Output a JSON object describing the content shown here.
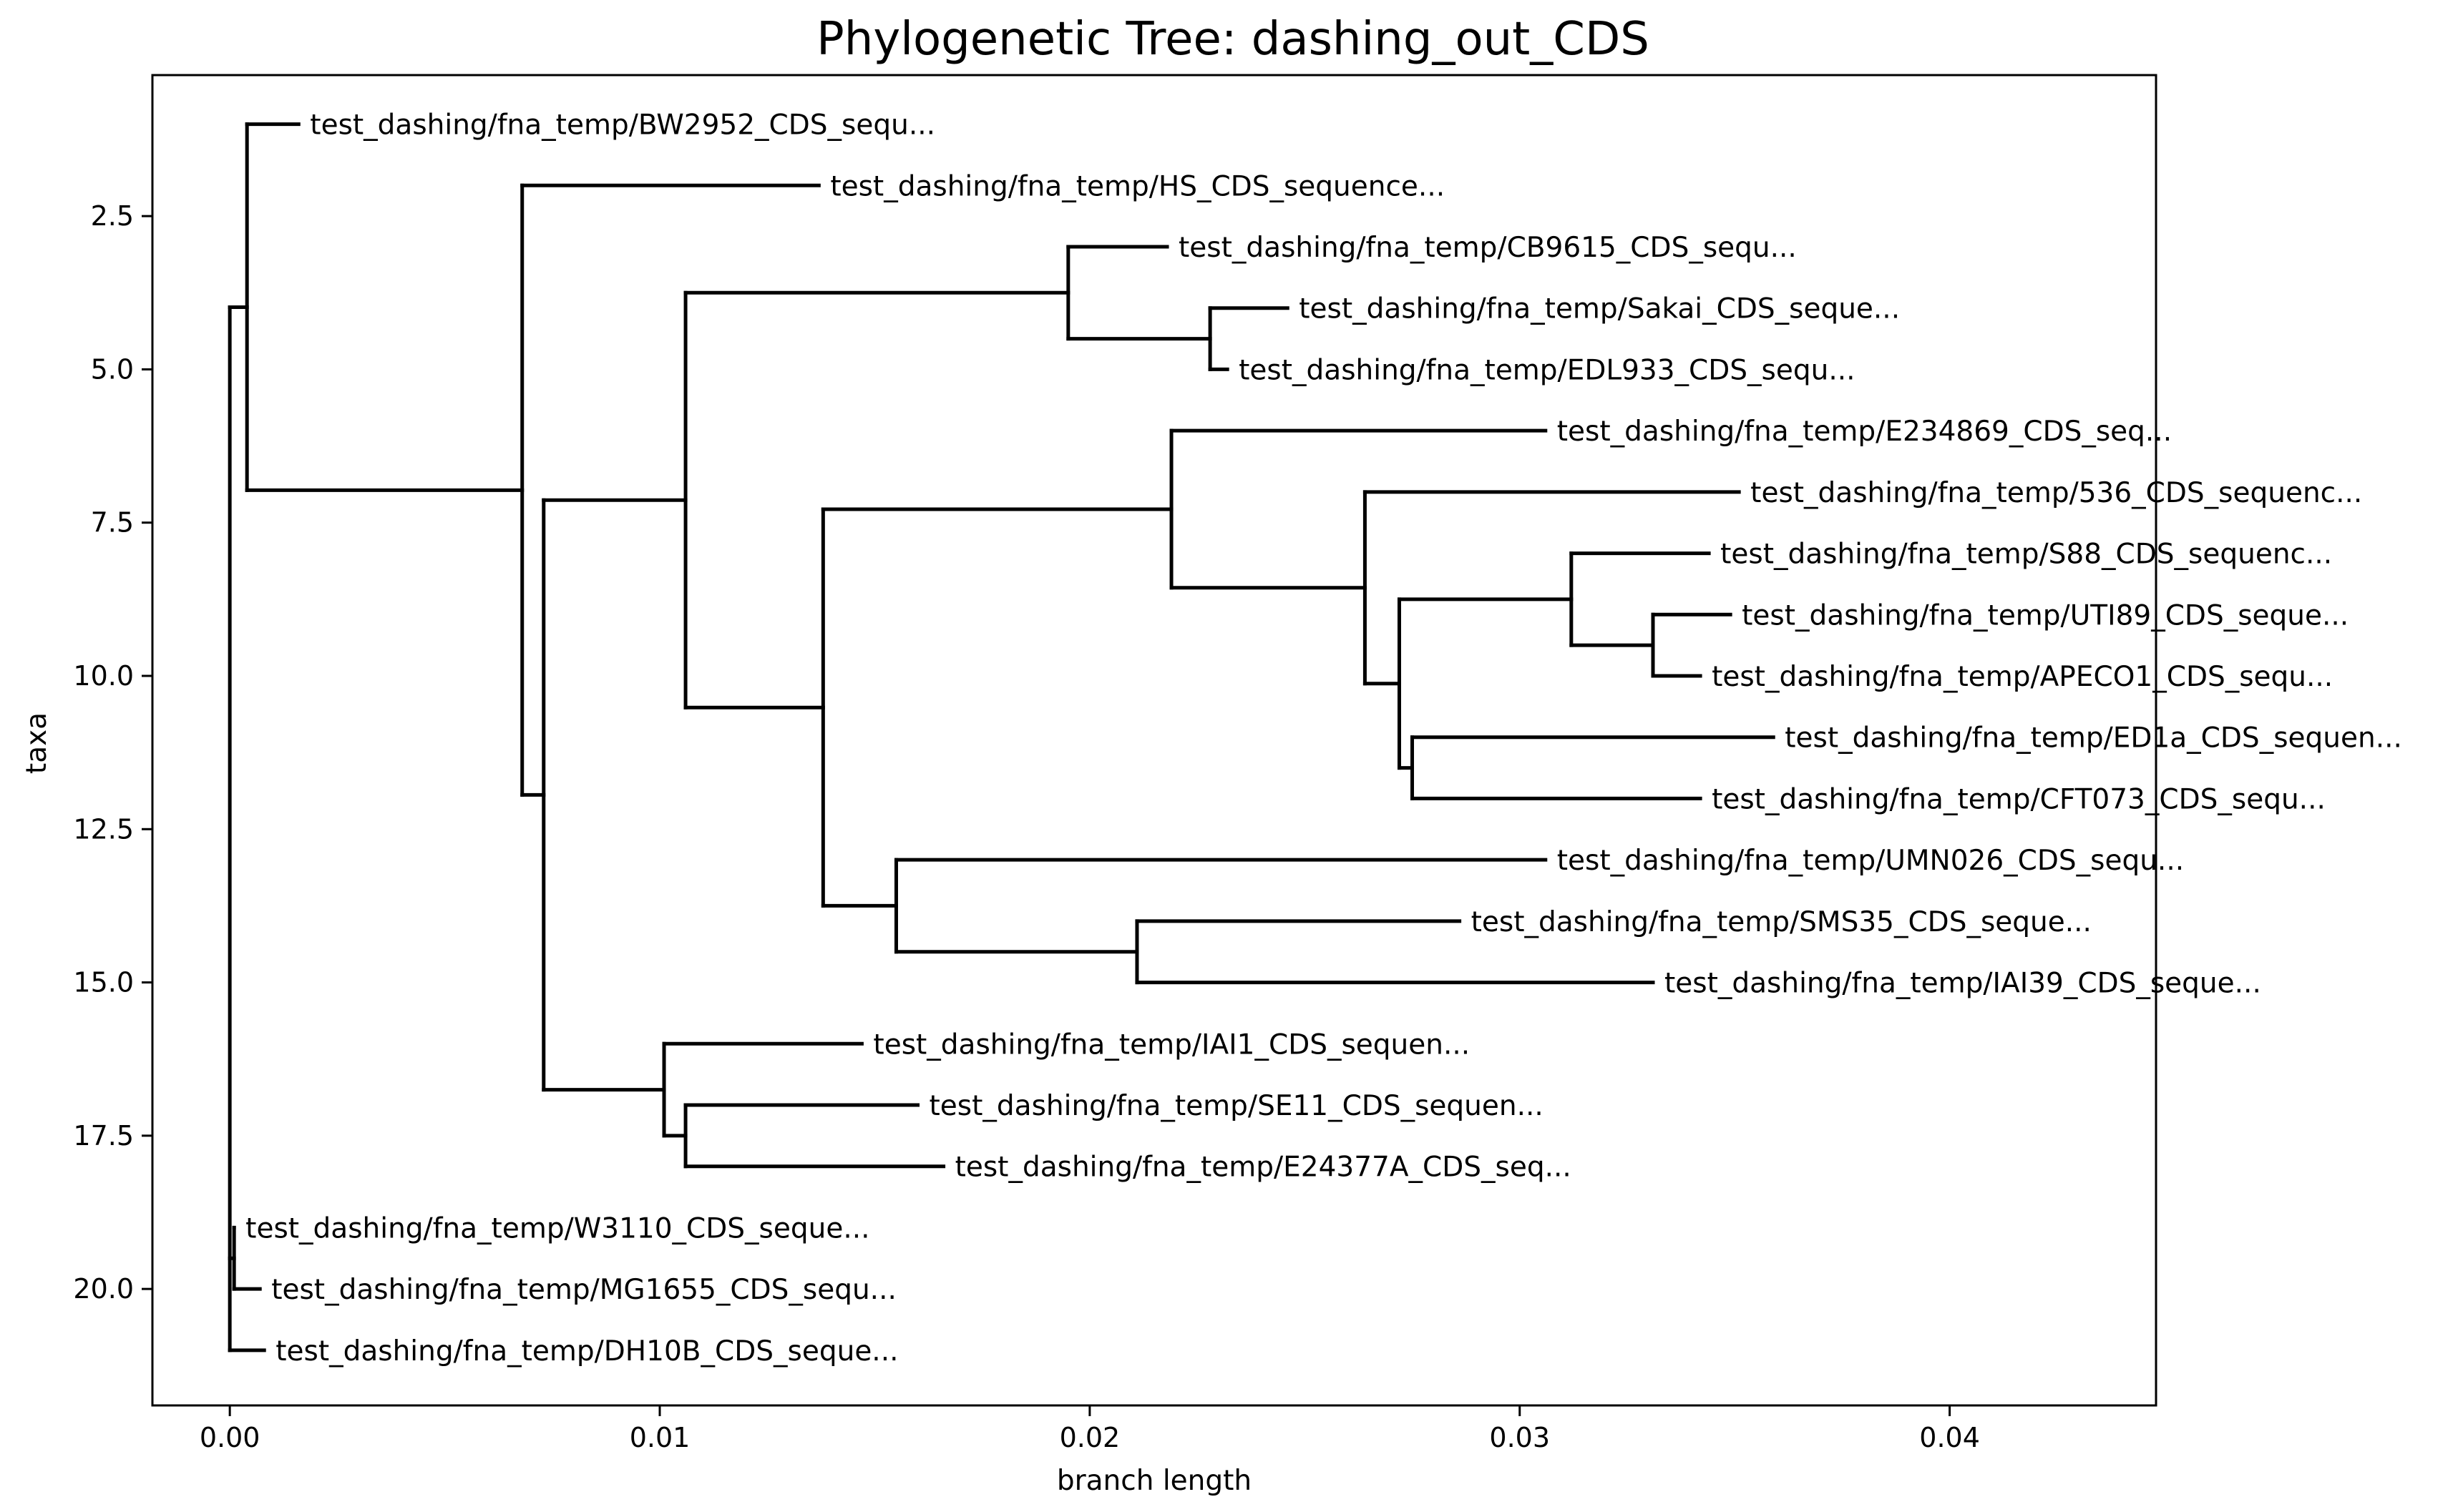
{
  "chart_data": {
    "type": "dendrogram",
    "title": "Phylogenetic Tree: dashing_out_CDS",
    "xlabel": "branch length",
    "ylabel": "taxa",
    "xlim": [
      -0.0018,
      0.0448
    ],
    "ylim": [
      21.9,
      0.2
    ],
    "x_ticks": [
      0.0,
      0.01,
      0.02,
      0.03,
      0.04
    ],
    "x_tick_labels": [
      "0.00",
      "0.01",
      "0.02",
      "0.03",
      "0.04"
    ],
    "y_ticks": [
      2.5,
      5.0,
      7.5,
      10.0,
      12.5,
      15.0,
      17.5,
      20.0
    ],
    "y_tick_labels": [
      "2.5",
      "5.0",
      "7.5",
      "10.0",
      "12.5",
      "15.0",
      "17.5",
      "20.0"
    ],
    "grid": false,
    "line_color": "#000000",
    "nodes": [
      {
        "id": "root",
        "parent": null,
        "x": 0.0
      },
      {
        "id": "nA",
        "parent": "root",
        "x": 0.0004
      },
      {
        "id": "leaf1",
        "parent": "nA",
        "x": 0.0016,
        "y": 1,
        "label": "test_dashing/fna_temp/BW2952_CDS_sequ..."
      },
      {
        "id": "nB",
        "parent": "nA",
        "x": 0.0068
      },
      {
        "id": "leaf2",
        "parent": "nB",
        "x": 0.0137,
        "y": 2,
        "label": "test_dashing/fna_temp/HS_CDS_sequence..."
      },
      {
        "id": "nC",
        "parent": "nB",
        "x": 0.0073
      },
      {
        "id": "nD",
        "parent": "nC",
        "x": 0.0106
      },
      {
        "id": "nE",
        "parent": "nD",
        "x": 0.0195
      },
      {
        "id": "leaf3",
        "parent": "nE",
        "x": 0.0218,
        "y": 3,
        "label": "test_dashing/fna_temp/CB9615_CDS_sequ..."
      },
      {
        "id": "nF",
        "parent": "nE",
        "x": 0.0228
      },
      {
        "id": "leaf4",
        "parent": "nF",
        "x": 0.0246,
        "y": 4,
        "label": "test_dashing/fna_temp/Sakai_CDS_seque..."
      },
      {
        "id": "leaf5",
        "parent": "nF",
        "x": 0.0232,
        "y": 5,
        "label": "test_dashing/fna_temp/EDL933_CDS_sequ..."
      },
      {
        "id": "nG",
        "parent": "nD",
        "x": 0.0138
      },
      {
        "id": "nH",
        "parent": "nG",
        "x": 0.0219
      },
      {
        "id": "leaf6",
        "parent": "nH",
        "x": 0.0306,
        "y": 6,
        "label": "test_dashing/fna_temp/E234869_CDS_seq..."
      },
      {
        "id": "nI",
        "parent": "nH",
        "x": 0.0264
      },
      {
        "id": "leaf7",
        "parent": "nI",
        "x": 0.0351,
        "y": 7,
        "label": "test_dashing/fna_temp/536_CDS_sequenc..."
      },
      {
        "id": "nJ",
        "parent": "nI",
        "x": 0.0272
      },
      {
        "id": "nK",
        "parent": "nJ",
        "x": 0.0312
      },
      {
        "id": "leaf8",
        "parent": "nK",
        "x": 0.0344,
        "y": 8,
        "label": "test_dashing/fna_temp/S88_CDS_sequenc..."
      },
      {
        "id": "nL",
        "parent": "nK",
        "x": 0.0331
      },
      {
        "id": "leaf9",
        "parent": "nL",
        "x": 0.0349,
        "y": 9,
        "label": "test_dashing/fna_temp/UTI89_CDS_seque..."
      },
      {
        "id": "leaf10",
        "parent": "nL",
        "x": 0.0342,
        "y": 10,
        "label": "test_dashing/fna_temp/APECO1_CDS_sequ..."
      },
      {
        "id": "nM",
        "parent": "nJ",
        "x": 0.0275
      },
      {
        "id": "leaf11",
        "parent": "nM",
        "x": 0.0359,
        "y": 11,
        "label": "test_dashing/fna_temp/ED1a_CDS_sequen..."
      },
      {
        "id": "leaf12",
        "parent": "nM",
        "x": 0.0342,
        "y": 12,
        "label": "test_dashing/fna_temp/CFT073_CDS_sequ..."
      },
      {
        "id": "nN",
        "parent": "nG",
        "x": 0.0155
      },
      {
        "id": "leaf13",
        "parent": "nN",
        "x": 0.0306,
        "y": 13,
        "label": "test_dashing/fna_temp/UMN026_CDS_sequ..."
      },
      {
        "id": "nO",
        "parent": "nN",
        "x": 0.0211
      },
      {
        "id": "leaf14",
        "parent": "nO",
        "x": 0.0286,
        "y": 14,
        "label": "test_dashing/fna_temp/SMS35_CDS_seque..."
      },
      {
        "id": "leaf15",
        "parent": "nO",
        "x": 0.0331,
        "y": 15,
        "label": "test_dashing/fna_temp/IAI39_CDS_seque..."
      },
      {
        "id": "nP",
        "parent": "nC",
        "x": 0.0101
      },
      {
        "id": "leaf16",
        "parent": "nP",
        "x": 0.0147,
        "y": 16,
        "label": "test_dashing/fna_temp/IAI1_CDS_sequen..."
      },
      {
        "id": "nQ",
        "parent": "nP",
        "x": 0.0106
      },
      {
        "id": "leaf17",
        "parent": "nQ",
        "x": 0.016,
        "y": 17,
        "label": "test_dashing/fna_temp/SE11_CDS_sequen..."
      },
      {
        "id": "leaf18",
        "parent": "nQ",
        "x": 0.0166,
        "y": 18,
        "label": "test_dashing/fna_temp/E24377A_CDS_seq..."
      },
      {
        "id": "nR",
        "parent": "root",
        "x": 0.0001
      },
      {
        "id": "leaf19",
        "parent": "nR",
        "x": 0.0001,
        "y": 19,
        "label": "test_dashing/fna_temp/W3110_CDS_seque..."
      },
      {
        "id": "leaf20",
        "parent": "nR",
        "x": 0.0007,
        "y": 20,
        "label": "test_dashing/fna_temp/MG1655_CDS_sequ..."
      },
      {
        "id": "leaf21",
        "parent": "root",
        "x": 0.0008,
        "y": 21,
        "label": "test_dashing/fna_temp/DH10B_CDS_seque..."
      }
    ]
  }
}
